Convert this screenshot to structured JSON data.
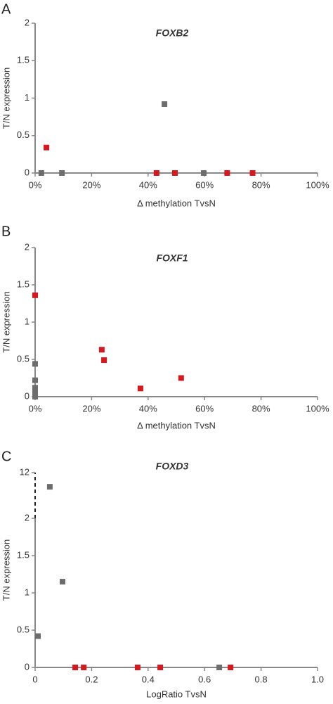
{
  "chart_data": [
    {
      "type": "scatter",
      "panel": "A",
      "title": "FOXB2",
      "x_label": "Δ methylation TvsN",
      "y_label": "T/N expression",
      "xlim": [
        0,
        100
      ],
      "xticks": [
        {
          "value": 0,
          "label": "0%"
        },
        {
          "value": 20,
          "label": "20%"
        },
        {
          "value": 40,
          "label": "40%"
        },
        {
          "value": 60,
          "label": "60%"
        },
        {
          "value": 80,
          "label": "80%"
        },
        {
          "value": 100,
          "label": "100%"
        }
      ],
      "ylim": [
        0,
        2
      ],
      "yticks": [
        0,
        0.5,
        1,
        1.5,
        2
      ],
      "series": [
        {
          "color": "#6d6d6d",
          "x": [
            2.2,
            9.5,
            45.8,
            59.7
          ],
          "values": [
            0,
            0,
            0.92,
            0
          ]
        },
        {
          "color": "#d7191f",
          "x": [
            4,
            43,
            49.5,
            68,
            77
          ],
          "values": [
            0.34,
            0,
            0,
            0,
            0
          ]
        }
      ]
    },
    {
      "type": "scatter",
      "panel": "B",
      "title": "FOXF1",
      "x_label": "Δ methylation TvsN",
      "y_label": "T/N expression",
      "xlim": [
        0,
        100
      ],
      "xticks": [
        {
          "value": 0,
          "label": "0%"
        },
        {
          "value": 20,
          "label": "20%"
        },
        {
          "value": 40,
          "label": "40%"
        },
        {
          "value": 60,
          "label": "60%"
        },
        {
          "value": 80,
          "label": "80%"
        },
        {
          "value": 100,
          "label": "100%"
        }
      ],
      "ylim": [
        0,
        2
      ],
      "yticks": [
        0,
        0.5,
        1,
        1.5,
        2
      ],
      "series": [
        {
          "color": "#6d6d6d",
          "x": [
            0,
            0,
            0,
            0,
            0,
            0
          ],
          "values": [
            0.44,
            0.22,
            0.12,
            0.08,
            0.04,
            0
          ]
        },
        {
          "color": "#d7191f",
          "x": [
            0,
            23.6,
            24.4,
            37.3,
            51.7
          ],
          "values": [
            1.36,
            0.63,
            0.49,
            0.11,
            0.25
          ]
        }
      ]
    },
    {
      "type": "scatter",
      "panel": "C",
      "title": "FOXD3",
      "x_label": "LogRatio TvsN",
      "y_label": "T/N expression",
      "xlim": [
        0,
        1
      ],
      "xticks": [
        0,
        0.2,
        0.4,
        0.6,
        0.8,
        {
          "value": 1,
          "label": "1.0"
        }
      ],
      "ylim": [
        0,
        12
      ],
      "yticks": [
        0,
        0.5,
        1,
        1.5,
        2,
        12
      ],
      "y_break": true,
      "series": [
        {
          "color": "#6d6d6d",
          "x": [
            0.01,
            0.052,
            0.097,
            0.652
          ],
          "values": [
            0.42,
            8.9,
            1.15,
            0
          ]
        },
        {
          "color": "#d7191f",
          "x": [
            0.142,
            0.172,
            0.363,
            0.443,
            0.692
          ],
          "values": [
            0,
            0,
            0,
            0,
            0
          ]
        }
      ]
    }
  ]
}
